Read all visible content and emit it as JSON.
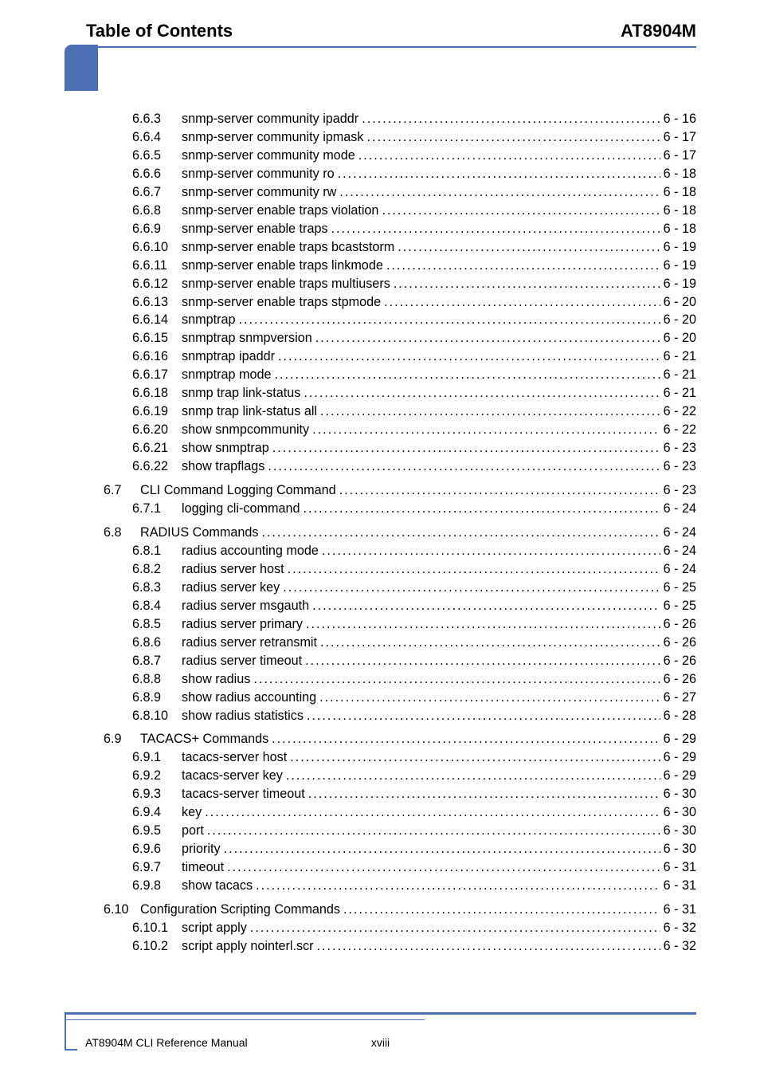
{
  "header": {
    "left": "Table of Contents",
    "right": "AT8904M"
  },
  "footer": {
    "left": "AT8904M CLI Reference Manual",
    "center": "xviii"
  },
  "toc": [
    {
      "indent": 2,
      "num": "6.6.3",
      "title": "snmp-server community ipaddr",
      "page": "6 - 16"
    },
    {
      "indent": 2,
      "num": "6.6.4",
      "title": "snmp-server community ipmask",
      "page": "6 - 17"
    },
    {
      "indent": 2,
      "num": "6.6.5",
      "title": "snmp-server community mode",
      "page": "6 - 17"
    },
    {
      "indent": 2,
      "num": "6.6.6",
      "title": "snmp-server community ro",
      "page": "6 - 18"
    },
    {
      "indent": 2,
      "num": "6.6.7",
      "title": "snmp-server community rw",
      "page": "6 - 18"
    },
    {
      "indent": 2,
      "num": "6.6.8",
      "title": "snmp-server enable traps violation",
      "page": "6 - 18"
    },
    {
      "indent": 2,
      "num": "6.6.9",
      "title": "snmp-server enable traps",
      "page": "6 - 18"
    },
    {
      "indent": 2,
      "num": "6.6.10",
      "title": "snmp-server enable traps bcaststorm",
      "page": "6 - 19"
    },
    {
      "indent": 2,
      "num": "6.6.11",
      "title": "snmp-server enable traps linkmode",
      "page": "6 - 19"
    },
    {
      "indent": 2,
      "num": "6.6.12",
      "title": "snmp-server enable traps multiusers",
      "page": "6 - 19"
    },
    {
      "indent": 2,
      "num": "6.6.13",
      "title": "snmp-server enable traps stpmode",
      "page": "6 - 20"
    },
    {
      "indent": 2,
      "num": "6.6.14",
      "title": "snmptrap",
      "page": "6 - 20"
    },
    {
      "indent": 2,
      "num": "6.6.15",
      "title": "snmptrap snmpversion",
      "page": "6 - 20"
    },
    {
      "indent": 2,
      "num": "6.6.16",
      "title": "snmptrap ipaddr",
      "page": "6 - 21"
    },
    {
      "indent": 2,
      "num": "6.6.17",
      "title": "snmptrap mode",
      "page": "6 - 21"
    },
    {
      "indent": 2,
      "num": "6.6.18",
      "title": "snmp trap link-status",
      "page": "6 - 21"
    },
    {
      "indent": 2,
      "num": "6.6.19",
      "title": "snmp trap link-status all",
      "page": "6 - 22"
    },
    {
      "indent": 2,
      "num": "6.6.20",
      "title": "show snmpcommunity",
      "page": "6 - 22"
    },
    {
      "indent": 2,
      "num": "6.6.21",
      "title": "show snmptrap",
      "page": "6 - 23"
    },
    {
      "indent": 2,
      "num": "6.6.22",
      "title": "show trapflags",
      "page": "6 - 23"
    },
    {
      "gap": true
    },
    {
      "indent": 1,
      "num": "6.7",
      "title": "CLI Command Logging Command",
      "page": "6 - 23"
    },
    {
      "indent": 2,
      "num": "6.7.1",
      "title": "logging cli-command",
      "page": "6 - 24"
    },
    {
      "gap": true
    },
    {
      "indent": 1,
      "num": "6.8",
      "title": "RADIUS Commands",
      "page": "6 - 24"
    },
    {
      "indent": 2,
      "num": "6.8.1",
      "title": "radius accounting mode",
      "page": "6 - 24"
    },
    {
      "indent": 2,
      "num": "6.8.2",
      "title": "radius server host",
      "page": "6 - 24"
    },
    {
      "indent": 2,
      "num": "6.8.3",
      "title": "radius server key",
      "page": "6 - 25"
    },
    {
      "indent": 2,
      "num": "6.8.4",
      "title": "radius server msgauth",
      "page": "6 - 25"
    },
    {
      "indent": 2,
      "num": "6.8.5",
      "title": "radius server primary",
      "page": "6 - 26"
    },
    {
      "indent": 2,
      "num": "6.8.6",
      "title": "radius server retransmit",
      "page": "6 - 26"
    },
    {
      "indent": 2,
      "num": "6.8.7",
      "title": "radius server timeout",
      "page": "6 - 26"
    },
    {
      "indent": 2,
      "num": "6.8.8",
      "title": "show radius",
      "page": "6 - 26"
    },
    {
      "indent": 2,
      "num": "6.8.9",
      "title": "show radius accounting",
      "page": "6 - 27"
    },
    {
      "indent": 2,
      "num": "6.8.10",
      "title": "show radius statistics",
      "page": "6 - 28"
    },
    {
      "gap": true
    },
    {
      "indent": 1,
      "num": "6.9",
      "title": "TACACS+ Commands",
      "page": "6 - 29"
    },
    {
      "indent": 2,
      "num": "6.9.1",
      "title": "tacacs-server host",
      "page": "6 - 29"
    },
    {
      "indent": 2,
      "num": "6.9.2",
      "title": "tacacs-server key",
      "page": "6 - 29"
    },
    {
      "indent": 2,
      "num": "6.9.3",
      "title": "tacacs-server timeout",
      "page": "6 - 30"
    },
    {
      "indent": 2,
      "num": "6.9.4",
      "title": "key",
      "page": "6 - 30"
    },
    {
      "indent": 2,
      "num": "6.9.5",
      "title": "port",
      "page": "6 - 30"
    },
    {
      "indent": 2,
      "num": "6.9.6",
      "title": "priority",
      "page": "6 - 30"
    },
    {
      "indent": 2,
      "num": "6.9.7",
      "title": "timeout",
      "page": "6 - 31"
    },
    {
      "indent": 2,
      "num": "6.9.8",
      "title": "show tacacs",
      "page": "6 - 31"
    },
    {
      "gap": true
    },
    {
      "indent": 1,
      "num": "6.10",
      "title": "Configuration Scripting Commands",
      "page": "6 - 31"
    },
    {
      "indent": 2,
      "num": "6.10.1",
      "title": "script apply",
      "page": "6 - 32"
    },
    {
      "indent": 2,
      "num": "6.10.2",
      "title": "script apply nointerl.scr",
      "page": "6 - 32"
    }
  ]
}
